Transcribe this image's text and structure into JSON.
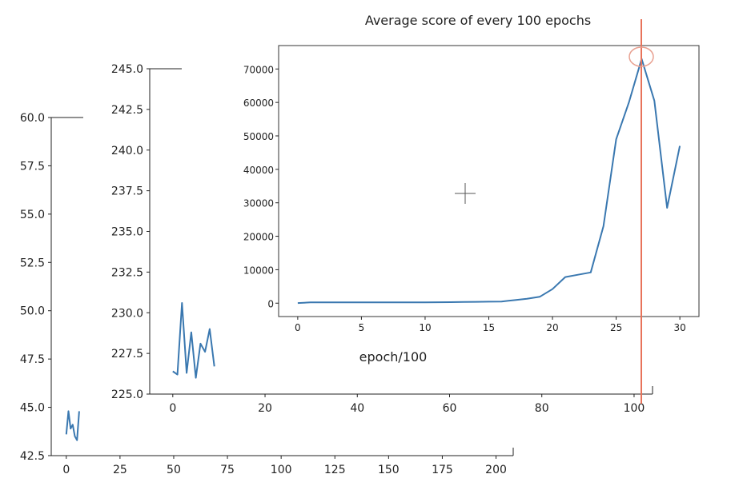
{
  "chart_data": [
    {
      "type": "line",
      "title": "",
      "xlabel": "",
      "ylabel": "",
      "xlim": [
        -7,
        208
      ],
      "ylim": [
        42.5,
        60.0
      ],
      "xticks": [
        "0",
        "25",
        "50",
        "75",
        "100",
        "125",
        "150",
        "175",
        "200"
      ],
      "yticks": [
        "42.5",
        "45.0",
        "47.5",
        "50.0",
        "52.5",
        "55.0",
        "57.5",
        "60.0"
      ],
      "grid": false,
      "series": [
        {
          "x": [
            0,
            1,
            2,
            3,
            4,
            5,
            6
          ],
          "values": [
            43.6,
            44.8,
            43.9,
            44.1,
            43.5,
            43.3,
            44.8
          ],
          "color": "#3a78b0"
        }
      ]
    },
    {
      "type": "line",
      "title": "",
      "xlabel": "",
      "ylabel": "",
      "xlim": [
        -5,
        104
      ],
      "ylim": [
        225.0,
        245.0
      ],
      "xticks": [
        "0",
        "20",
        "40",
        "60",
        "80",
        "100"
      ],
      "yticks": [
        "225.0",
        "227.5",
        "230.0",
        "232.5",
        "235.0",
        "237.5",
        "240.0",
        "242.5",
        "245.0"
      ],
      "grid": false,
      "series": [
        {
          "x": [
            0,
            1,
            2,
            3,
            4,
            5,
            6,
            7,
            8,
            9
          ],
          "values": [
            226.4,
            226.2,
            230.6,
            226.3,
            228.8,
            226.0,
            228.1,
            227.6,
            229.0,
            226.7
          ],
          "color": "#3a78b0"
        }
      ]
    },
    {
      "type": "line",
      "title": "Average score of every 100 epochs",
      "xlabel": "epoch/100",
      "ylabel": "",
      "xlim": [
        -1.5,
        31.5
      ],
      "ylim": [
        -4000,
        77000
      ],
      "xticks": [
        "0",
        "5",
        "10",
        "15",
        "20",
        "25",
        "30"
      ],
      "yticks": [
        "0",
        "10000",
        "20000",
        "30000",
        "40000",
        "50000",
        "60000",
        "70000"
      ],
      "grid": false,
      "series": [
        {
          "x": [
            0,
            1,
            2,
            3,
            4,
            5,
            6,
            7,
            8,
            9,
            10,
            11,
            12,
            13,
            14,
            15,
            16,
            17,
            18,
            19,
            20,
            21,
            22,
            23,
            24,
            25,
            26,
            27,
            28,
            29,
            30
          ],
          "values": [
            44,
            226,
            230,
            228,
            226,
            229,
            230,
            232,
            240,
            260,
            250,
            280,
            300,
            350,
            400,
            450,
            500,
            900,
            1300,
            1900,
            4200,
            7800,
            8500,
            9200,
            23000,
            49000,
            60000,
            73000,
            60500,
            28500,
            47000
          ],
          "color": "#3a78b0"
        }
      ]
    }
  ],
  "overlay": {
    "vertical_marker_color": "#e8735a",
    "circle_marker_color": "#e8a090",
    "crosshair_color": "#555555"
  }
}
